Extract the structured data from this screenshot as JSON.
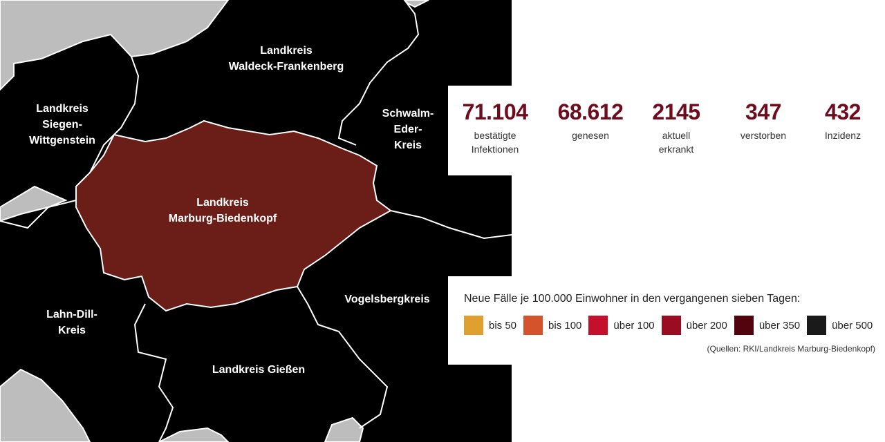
{
  "map": {
    "regions": [
      {
        "id": "waldeck",
        "label": "Landkreis\nWaldeck-Frankenberg",
        "fill": "#000000"
      },
      {
        "id": "siegen",
        "label": "Landkreis\nSiegen-\nWittgenstein",
        "fill": "#000000"
      },
      {
        "id": "schwalm",
        "label": "Schwalm-\nEder-\nKreis",
        "fill": "#000000"
      },
      {
        "id": "marburg",
        "label": "Landkreis\nMarburg-Biedenkopf",
        "fill": "#6b1d17"
      },
      {
        "id": "vogelsberg",
        "label": "Vogelsbergkreis",
        "fill": "#000000"
      },
      {
        "id": "lahndill",
        "label": "Lahn-Dill-\nKreis",
        "fill": "#000000"
      },
      {
        "id": "giessen",
        "label": "Landkreis Gießen",
        "fill": "#000000"
      }
    ],
    "outside_fill": "#bdbdbd"
  },
  "stats": [
    {
      "value": "71.104",
      "label": "bestätigte\nInfektionen"
    },
    {
      "value": "68.612",
      "label": "genesen"
    },
    {
      "value": "2145",
      "label": "aktuell\nerkrankt"
    },
    {
      "value": "347",
      "label": "verstorben"
    },
    {
      "value": "432",
      "label": "Inzidenz"
    }
  ],
  "legend": {
    "title": "Neue Fälle je 100.000 Einwohner in den vergangenen sieben Tagen:",
    "items": [
      {
        "label": "bis 50",
        "color": "#e0a030"
      },
      {
        "label": "bis 100",
        "color": "#d4532a"
      },
      {
        "label": "über 100",
        "color": "#c4102a"
      },
      {
        "label": "über 200",
        "color": "#9a0c22"
      },
      {
        "label": "über 350",
        "color": "#52030e"
      },
      {
        "label": "über 500",
        "color": "#1a1a1a"
      }
    ],
    "source": "(Quellen: RKI/Landkreis Marburg-Biedenkopf)"
  }
}
